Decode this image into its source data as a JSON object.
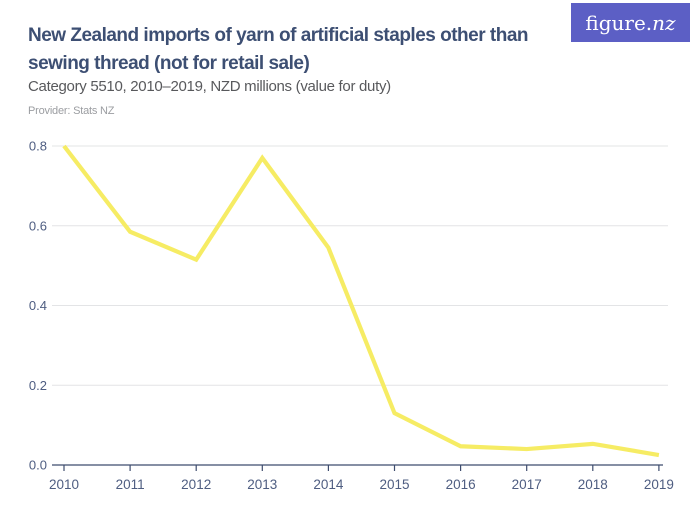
{
  "header": {
    "title": "New Zealand imports of yarn of artificial staples other than sewing thread (not for retail sale)",
    "title_lines": [
      "New Zealand imports of yarn of artificial staples other than",
      "sewing thread (not for retail sale)"
    ],
    "subtitle": "Category 5510, 2010–2019, NZD millions (value for duty)",
    "provider": "Provider: Stats NZ",
    "logo": {
      "prefix": "figure.",
      "suffix": "nz"
    }
  },
  "colors": {
    "background": "#ffffff",
    "accent_line": "#f6ec64",
    "logo_background": "#5c5fc5",
    "logo_text": "#ffffff",
    "title_text": "#3d4f73",
    "subtitle_text": "#58595c",
    "provider_text": "#9b9da1",
    "axis_text": "#4e5d81",
    "axis_line": "#3e4c6e",
    "gridline": "#e3e4e6"
  },
  "chart_data": {
    "type": "line",
    "title": "New Zealand imports of yarn of artificial staples other than sewing thread (not for retail sale)",
    "subtitle": "Category 5510, 2010–2019, NZD millions (value for duty)",
    "series_name": "NZD millions (value for duty)",
    "x": [
      2010,
      2011,
      2012,
      2013,
      2014,
      2015,
      2016,
      2017,
      2018,
      2019
    ],
    "x_labels": [
      "2010",
      "2011",
      "2012",
      "2013",
      "2014",
      "2015",
      "2016",
      "2017",
      "2018",
      "2019"
    ],
    "values": [
      0.8,
      0.585,
      0.515,
      0.77,
      0.545,
      0.13,
      0.047,
      0.04,
      0.053,
      0.025
    ],
    "xlabel": "",
    "ylabel": "",
    "ylim": [
      0,
      0.8
    ],
    "yticks": [
      0,
      0.2,
      0.4,
      0.6,
      0.8
    ],
    "ytick_labels": [
      "0.0",
      "0.2",
      "0.4",
      "0.6",
      "0.8"
    ],
    "grid": "horizontal",
    "legend": "none"
  }
}
